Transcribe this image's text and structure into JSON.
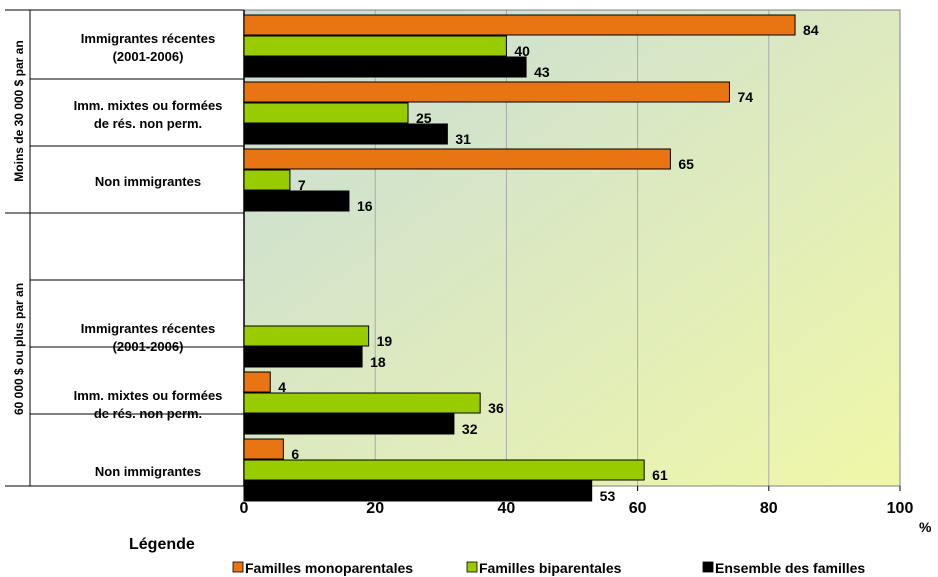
{
  "chart_data": {
    "type": "bar",
    "orientation": "horizontal",
    "x_unit": "%",
    "xlim": [
      0,
      100
    ],
    "x_ticks": [
      0,
      20,
      40,
      60,
      80,
      100
    ],
    "grid": true,
    "legend_title": "Légende",
    "legend_position": "bottom",
    "groups": [
      {
        "label": "Moins de 30 000 $ par an",
        "categories": [
          {
            "label": [
              "Immigrantes récentes",
              "(2001-2006)"
            ],
            "values": [
              84,
              40,
              43
            ]
          },
          {
            "label": [
              "Imm. mixtes ou formées",
              "de rés. non perm."
            ],
            "values": [
              74,
              25,
              31
            ]
          },
          {
            "label": [
              "Non immigrantes"
            ],
            "values": [
              65,
              7,
              16
            ]
          }
        ]
      },
      {
        "label": "60 000 $ ou plus par an",
        "categories": [
          {
            "label": [
              "Immigrantes récentes",
              "(2001-2006)"
            ],
            "values": [
              null,
              19,
              18
            ]
          },
          {
            "label": [
              "Imm. mixtes ou formées",
              "de rés. non perm."
            ],
            "values": [
              4,
              36,
              32
            ]
          },
          {
            "label": [
              "Non immigrantes"
            ],
            "values": [
              6,
              61,
              53
            ]
          }
        ]
      }
    ],
    "series": [
      {
        "name": "Familles monoparentales",
        "color": "#E87511"
      },
      {
        "name": "Familles biparentales",
        "color": "#99CC00"
      },
      {
        "name": "Ensemble des familles",
        "color": "#000000"
      }
    ],
    "background_gradient": [
      "#C8DCD8",
      "#F0F7A8"
    ],
    "grid_color": "#A9A9A9"
  }
}
